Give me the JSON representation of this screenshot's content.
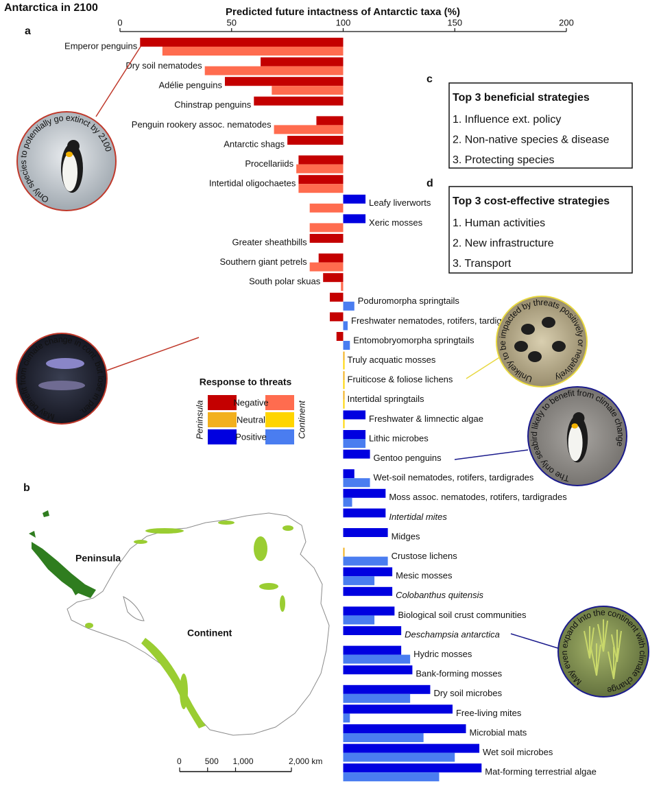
{
  "title": "Antarctica in 2100",
  "panel_labels": [
    "a",
    "b",
    "c",
    "d"
  ],
  "chart_data": {
    "type": "bar",
    "orientation": "horizontal",
    "x_label": "Predicted future intactness of Antarctic taxa (%)",
    "xlim": [
      0,
      200
    ],
    "xticks": [
      0,
      50,
      100,
      150,
      200
    ],
    "categories": [
      "Emperor penguins",
      "Dry soil nematodes",
      "Adélie penguins",
      "Chinstrap penguins",
      "Penguin rookery assoc. nematodes",
      "Antarctic shags",
      "Procellariids",
      "Intertidal oligochaetes",
      "Leafy liverworts",
      "Xeric mosses",
      "Greater sheathbills",
      "Southern giant petrels",
      "South polar skuas",
      "Poduromorpha springtails",
      "Freshwater nematodes, rotifers, tardigrades",
      "Entomobryomorpha springtails",
      "Truly acquatic mosses",
      "Fruiticose & foliose lichens",
      "Intertidal springtails",
      "Freshwater & limnectic algae",
      "Lithic microbes",
      "Gentoo penguins",
      "Wet-soil nematodes, rotifers, tardigrades",
      "Moss assoc. nematodes, rotifers, tardigrades",
      "Intertidal mites",
      "Midges",
      "Crustose lichens",
      "Mesic mosses",
      "Colobanthus quitensis",
      "Biological soil crust communities",
      "Deschampsia antarctica",
      "Hydric mosses",
      "Bank-forming mosses",
      "Dry soil microbes",
      "Free-living mites",
      "Microbial mats",
      "Wet soil microbes",
      "Mat-forming terrestrial algae"
    ],
    "italic": [
      24,
      28,
      30
    ],
    "series": [
      {
        "name": "Peninsula",
        "colors": [
          "#c40000",
          "#f2b01e",
          "#0000e0"
        ],
        "values": [
          9,
          63,
          47,
          60,
          88,
          75,
          80,
          80,
          110,
          110,
          85,
          89,
          91,
          94,
          94,
          97,
          100,
          100,
          100,
          110,
          110,
          112,
          105,
          119,
          119,
          120,
          100,
          122,
          122,
          123,
          126,
          126,
          131,
          139,
          149,
          155,
          161,
          162
        ]
      },
      {
        "name": "Continent",
        "colors": [
          "#ff6c4f",
          "#ffd500",
          "#4a7df0"
        ],
        "values": [
          19,
          38,
          68,
          null,
          69,
          null,
          79,
          80,
          85,
          85,
          null,
          85,
          99,
          105,
          102,
          103,
          100,
          100,
          100,
          100,
          110,
          null,
          112,
          104,
          null,
          null,
          120,
          114,
          null,
          114,
          null,
          130,
          null,
          130,
          103,
          136,
          150,
          143
        ]
      }
    ],
    "legend": {
      "title": "Response to threats",
      "entries": [
        "Negative",
        "Neutral",
        "Positive"
      ]
    }
  },
  "strategies": [
    {
      "title": "Top 3 beneficial strategies",
      "items": [
        "1. Influence ext. policy",
        "2. Non-native species & disease",
        "3. Protecting species"
      ]
    },
    {
      "title": "Top 3 cost-effective strategies",
      "items": [
        "1. Human activities",
        "2. New infrastructure",
        "3. Transport"
      ]
    }
  ],
  "annotations": [
    "Only species to potentially go extinct by 2100",
    "May benefit from climate change in cont. but lose in pen.",
    "Unlikely to be impacted by threats positively or negatively",
    "The only seabird likely to benefit from climate change",
    "May even expand into the continent with climate change"
  ],
  "map": {
    "labels": [
      "Peninsula",
      "Continent"
    ],
    "scale_bar": {
      "xlim": [
        0,
        2000
      ],
      "ticks": [
        0,
        500,
        {
          "value": 1000,
          "label": "1,000"
        },
        {
          "value": 2000,
          "label": "2,000 km"
        }
      ]
    }
  }
}
